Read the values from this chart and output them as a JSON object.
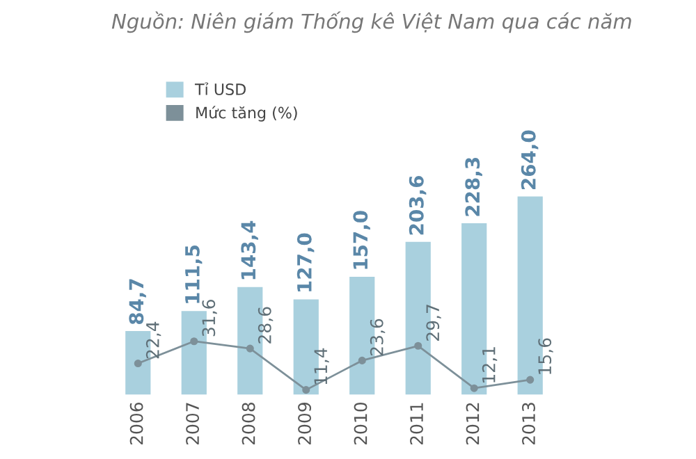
{
  "chart_data": {
    "type": "bar",
    "annotations": [
      "Nguồn: Niên giám Thống kê Việt Nam qua các năm"
    ],
    "categories": [
      "2006",
      "2007",
      "2008",
      "2009",
      "2010",
      "2011",
      "2012",
      "2013"
    ],
    "series": [
      {
        "name": "Tỉ USD",
        "color": "#a9d0de",
        "values": [
          84.7,
          111.5,
          143.4,
          127.0,
          157.0,
          203.6,
          228.3,
          264.0
        ],
        "value_labels": [
          "84,7",
          "111,5",
          "143,4",
          "127,0",
          "157,0",
          "203,6",
          "228,3",
          "264,0"
        ]
      },
      {
        "name": "Mức tăng (%)",
        "type": "line",
        "axis": "y2",
        "color": "#7d9099",
        "marker": "circle",
        "values": [
          22.4,
          31.6,
          28.6,
          11.4,
          23.6,
          29.7,
          12.1,
          15.6
        ],
        "value_labels": [
          "22,4",
          "31,6",
          "28,6",
          "11,4",
          "23,6",
          "29,7",
          "12,1",
          "15,6"
        ]
      }
    ],
    "legend": "top left",
    "grid": false
  }
}
